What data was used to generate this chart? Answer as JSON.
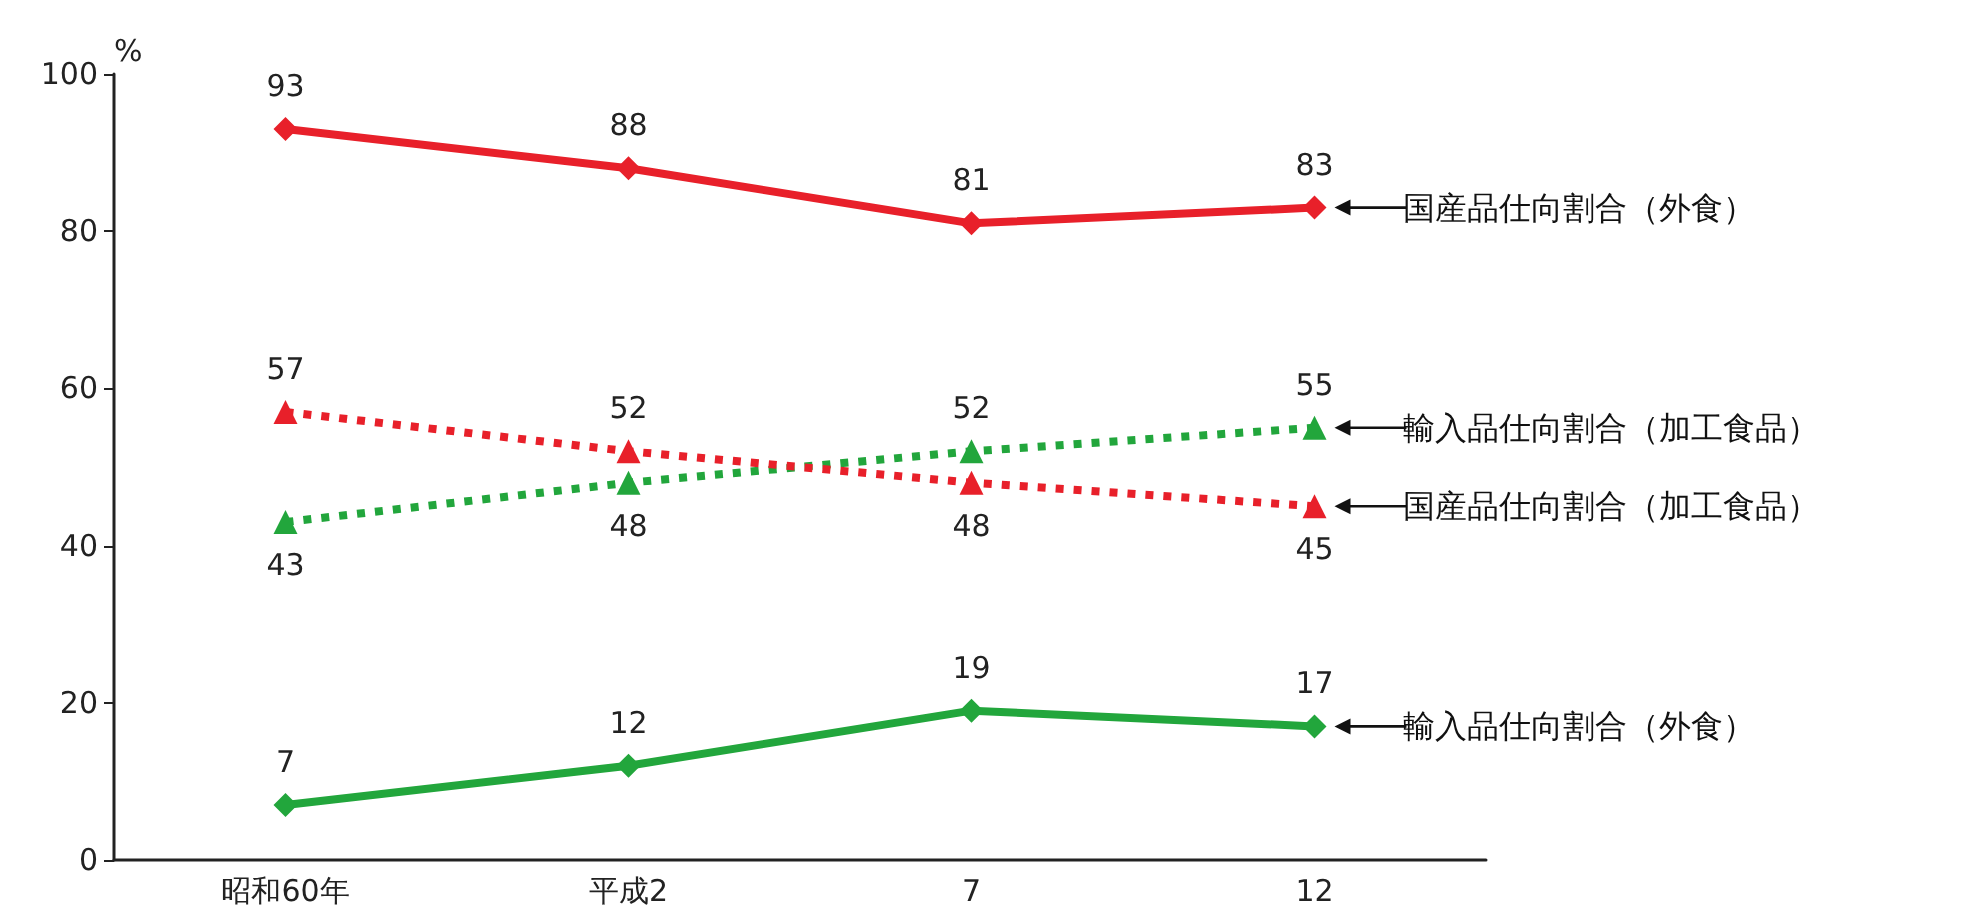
{
  "chart_data": {
    "type": "line",
    "ylabel": "%",
    "categories": [
      "昭和60年",
      "平成2",
      "7",
      "12"
    ],
    "series": [
      {
        "name": "国産品仕向割合（外食）",
        "color": "#e8202a",
        "values": [
          93,
          88,
          81,
          83
        ],
        "marker": "diamond",
        "line_style": "solid"
      },
      {
        "name": "輸入品仕向割合（加工食品）",
        "color": "#22a63c",
        "values": [
          43,
          48,
          52,
          55
        ],
        "marker": "triangle",
        "line_style": "dotted"
      },
      {
        "name": "国産品仕向割合（加工食品）",
        "color": "#e8202a",
        "values": [
          57,
          52,
          48,
          45
        ],
        "marker": "triangle",
        "line_style": "dotted"
      },
      {
        "name": "輸入品仕向割合（外食）",
        "color": "#22a63c",
        "values": [
          7,
          12,
          19,
          17
        ],
        "marker": "diamond",
        "line_style": "solid"
      }
    ],
    "ylim": [
      0,
      100
    ],
    "yticks": [
      0,
      20,
      40,
      60,
      80,
      100
    ],
    "grid": false,
    "legend": false,
    "data_labels": true
  }
}
